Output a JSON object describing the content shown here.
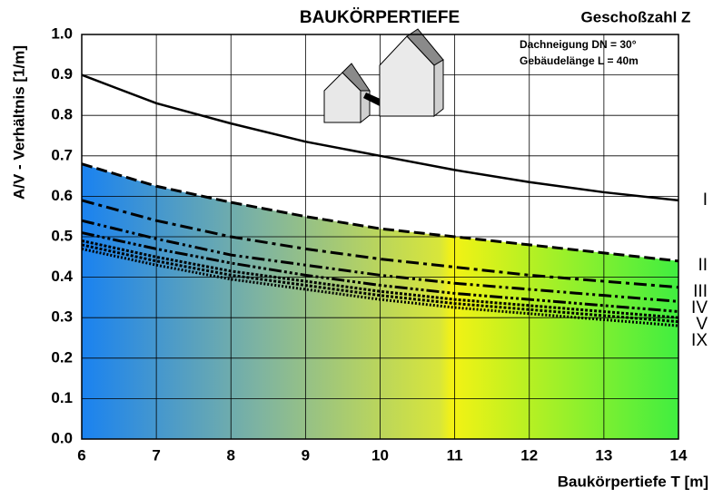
{
  "chart_data": {
    "type": "line",
    "title": "BAUKÖRPERTIEFE",
    "legend_title": "Geschoßzahl Z",
    "annotations": [
      "Dachneigung   DN = 30°",
      "Gebäudelänge L = 40m"
    ],
    "x_label": "Baukörpertiefe T [m]",
    "y_label": "A/V - Verhältnis [1/m]",
    "x": [
      6,
      7,
      8,
      9,
      10,
      11,
      12,
      13,
      14
    ],
    "xlim": [
      6,
      14
    ],
    "xticks": [
      6,
      7,
      8,
      9,
      10,
      11,
      12,
      13,
      14
    ],
    "ylim": [
      0,
      1
    ],
    "yticks": [
      {
        "value": 0,
        "label": "0.0"
      },
      0.1,
      0.2,
      0.3,
      0.4,
      0.5,
      0.6,
      0.7,
      0.8,
      0.9,
      {
        "value": 1,
        "label": "1.0"
      }
    ],
    "grid": true,
    "series": [
      {
        "name": "I",
        "color": "#000000",
        "values": [
          0.9,
          0.83,
          0.78,
          0.735,
          0.7,
          0.665,
          0.635,
          0.61,
          0.59
        ]
      },
      {
        "name": "II",
        "color": "#000000",
        "values": [
          0.68,
          0.625,
          0.585,
          0.55,
          0.52,
          0.5,
          0.48,
          0.46,
          0.44
        ]
      },
      {
        "name": "III",
        "color": "#000000",
        "values": [
          0.59,
          0.54,
          0.5,
          0.47,
          0.445,
          0.425,
          0.405,
          0.39,
          0.375
        ]
      },
      {
        "name": "IV",
        "color": "#000000",
        "values": [
          0.54,
          0.495,
          0.455,
          0.43,
          0.405,
          0.385,
          0.37,
          0.355,
          0.34
        ]
      },
      {
        "name": "V",
        "color": "#000000",
        "values": [
          0.51,
          0.47,
          0.435,
          0.405,
          0.38,
          0.36,
          0.345,
          0.33,
          0.315
        ]
      },
      {
        "color": "#000000",
        "values": [
          0.49,
          0.45,
          0.415,
          0.39,
          0.365,
          0.345,
          0.33,
          0.315,
          0.3
        ]
      },
      {
        "color": "#000000",
        "values": [
          0.48,
          0.44,
          0.405,
          0.38,
          0.355,
          0.335,
          0.32,
          0.305,
          0.29
        ]
      },
      {
        "name": "IX",
        "color": "#000000",
        "values": [
          0.47,
          0.43,
          0.395,
          0.37,
          0.345,
          0.325,
          0.31,
          0.295,
          0.28
        ]
      }
    ]
  }
}
